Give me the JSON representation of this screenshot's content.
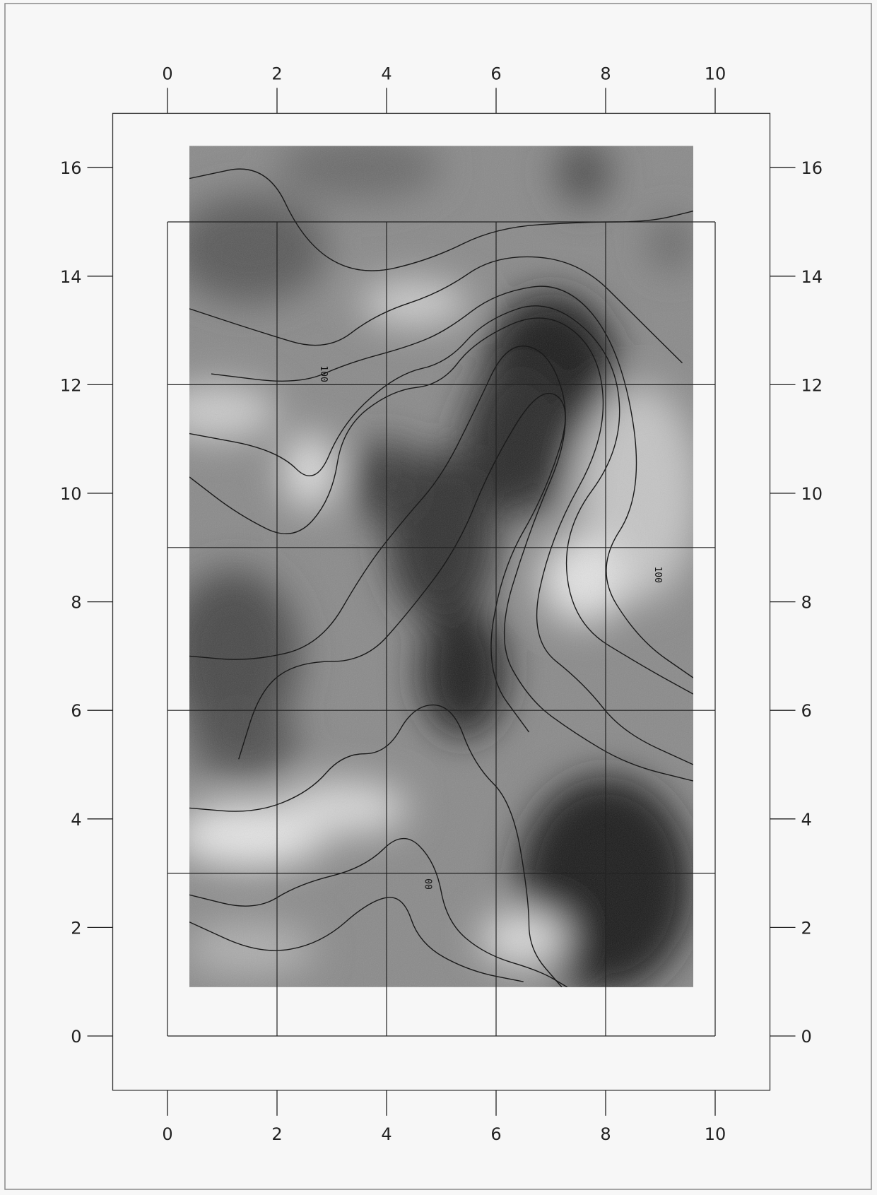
{
  "chart_data": {
    "type": "heatmap",
    "title": "",
    "xlabel": "",
    "ylabel": "",
    "xlim": [
      -1,
      11
    ],
    "ylim": [
      -1,
      17
    ],
    "x_ticks": [
      0,
      2,
      4,
      6,
      8,
      10
    ],
    "y_ticks": [
      0,
      2,
      4,
      6,
      8,
      10,
      12,
      14,
      16
    ],
    "x_tick_labels": [
      "0",
      "2",
      "4",
      "6",
      "8",
      "10"
    ],
    "y_tick_labels": [
      "0",
      "2",
      "4",
      "6",
      "8",
      "10",
      "12",
      "14",
      "16"
    ],
    "grid": true,
    "grid_x": [
      0,
      2,
      4,
      6,
      8,
      10
    ],
    "grid_y": [
      0,
      3,
      6,
      9,
      12,
      15
    ],
    "grid_extent": {
      "x": [
        0,
        10
      ],
      "y": [
        0,
        15
      ]
    },
    "data_extent": {
      "x": [
        0.4,
        9.6
      ],
      "y": [
        0.9,
        16.4
      ]
    },
    "colormap": "grayscale (dark = high, light = low)",
    "contour_labels": [
      {
        "text": "100",
        "x": 2.8,
        "y": 12.2
      },
      {
        "text": "100",
        "x": 8.9,
        "y": 8.5
      },
      {
        "text": "00",
        "x": 4.7,
        "y": 2.8
      }
    ]
  }
}
